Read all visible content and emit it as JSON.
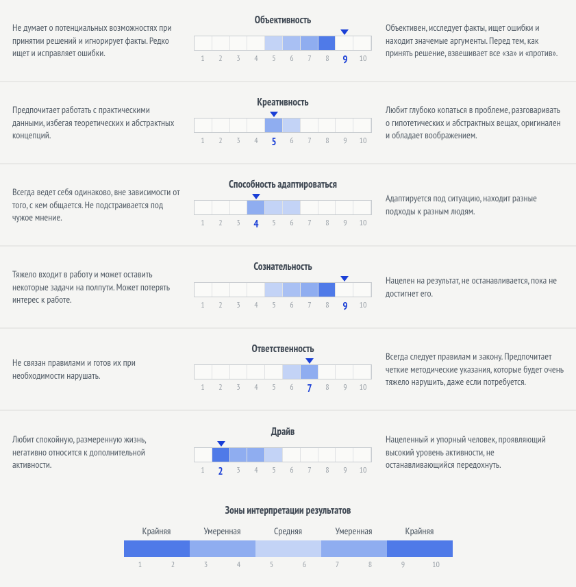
{
  "scale": {
    "min": 1,
    "max": 10,
    "tick_step": 1
  },
  "colors": {
    "marker": "#1a3fd6",
    "active_tick": "#1a3fd6",
    "inactive_tick": "#9aa1a8",
    "text": "#525c66",
    "title": "#3f4853",
    "border": "#c8ccd0",
    "background": "#f5f5f3",
    "row_divider": "#e8e8e6",
    "zone_extreme": "#4f7ae8",
    "zone_moderate": "#8fadf0",
    "zone_mid": "#c3d3f6"
  },
  "traits": [
    {
      "title": "Объективность",
      "value": 9,
      "left": "Не думает о потенциальных возможностях при принятии решений и игнорирует факты. Редко ищет и исправляет ошибки.",
      "right": "Объективен, исследует факты, ищет ошибки и находит значемые аргументы. Перед тем, как принять решение, взвешивает все «за» и «против».",
      "cells": [
        null,
        null,
        null,
        null,
        "#c3d3f6",
        "#a9c0f3",
        "#8fadf0",
        "#4f7ae8",
        null,
        null
      ]
    },
    {
      "title": "Креативность",
      "value": 5,
      "left": "Предпочитает работать с практическими данными, избегая теоретических и абстрактных концепций.",
      "right": "Любит глубоко копаться в проблеме, разговаривать о гипотетических и абстрактных вещах, оригинален и обладает воображением.",
      "cells": [
        null,
        null,
        null,
        null,
        "#8fadf0",
        "#c3d3f6",
        null,
        null,
        null,
        null
      ]
    },
    {
      "title": "Способность адаптироваться",
      "value": 4,
      "left": "Всегда ведет себя одинаково, вне зависимости от того, с кем общается. Не подстраивается под чужое мнение.",
      "right": "Адаптируется под ситуацию, находит разные подходы к разным людям.",
      "cells": [
        null,
        null,
        null,
        "#8fadf0",
        "#c3d3f6",
        "#c3d3f6",
        null,
        null,
        null,
        null
      ]
    },
    {
      "title": "Сознательность",
      "value": 9,
      "left": "Тяжело входит в работу и может оставить некоторые задачи на полпути. Может потерять интерес к работе.",
      "right": "Нацелен на результат, не останавливается, пока не достигнет его.",
      "cells": [
        null,
        null,
        null,
        null,
        "#c3d3f6",
        "#a9c0f3",
        "#8fadf0",
        "#4f7ae8",
        null,
        null
      ]
    },
    {
      "title": "Ответственность",
      "value": 7,
      "left": "Не связан правилами и готов их при необходимости нарушать.",
      "right": "Всегда следует правилам и закону. Предпочитает четкие методические указания, которые будет очень тяжело нарушить, даже если потребуется.",
      "cells": [
        null,
        null,
        null,
        null,
        null,
        "#c3d3f6",
        "#8fadf0",
        null,
        null,
        null
      ]
    },
    {
      "title": "Драйв",
      "value": 2,
      "left": "Любит спокойную, размеренную жизнь, негативно относится к дополнительной активности.",
      "right": "Нацеленный и упорный человек, проявляющий высокий уровень активности, не останавливающийся передохнуть.",
      "cells": [
        null,
        "#4f7ae8",
        "#8fadf0",
        "#8fadf0",
        "#c3d3f6",
        null,
        null,
        null,
        null,
        null
      ]
    }
  ],
  "legend": {
    "title": "Зоны интерпретации результатов",
    "zones": [
      "Крайняя",
      "Умеренная",
      "Средняя",
      "Умеренная",
      "Крайняя"
    ],
    "cells": [
      "#4f7ae8",
      "#4f7ae8",
      "#8fadf0",
      "#8fadf0",
      "#c3d3f6",
      "#c3d3f6",
      "#8fadf0",
      "#8fadf0",
      "#4f7ae8",
      "#4f7ae8"
    ]
  }
}
